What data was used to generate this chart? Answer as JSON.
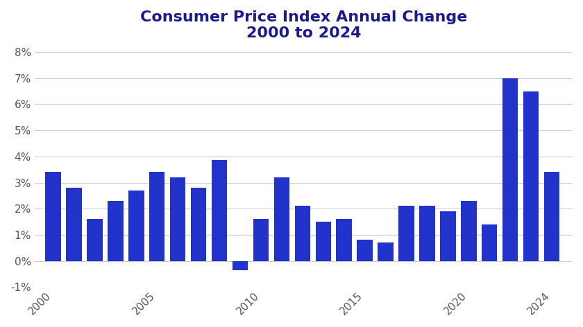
{
  "title_line1": "Consumer Price Index Annual Change",
  "title_line2": "2000 to 2024",
  "years": [
    2000,
    2001,
    2002,
    2003,
    2004,
    2005,
    2006,
    2007,
    2008,
    2009,
    2010,
    2011,
    2012,
    2013,
    2014,
    2015,
    2016,
    2017,
    2018,
    2019,
    2020,
    2021,
    2022,
    2023,
    2024
  ],
  "values": [
    3.4,
    2.8,
    1.6,
    2.3,
    2.7,
    3.4,
    3.2,
    2.8,
    3.85,
    -0.36,
    1.6,
    3.2,
    2.1,
    1.5,
    1.6,
    0.8,
    0.7,
    2.1,
    2.1,
    1.9,
    2.3,
    1.4,
    7.0,
    6.5,
    3.4
  ],
  "bar_color": "#2233cc",
  "bg_color": "#ffffff",
  "grid_color": "#cccccc",
  "title_color": "#1a1a8c",
  "axis_label_color": "#555555",
  "ylim": [
    -1.0,
    8.0
  ],
  "yticks": [
    -1,
    0,
    1,
    2,
    3,
    4,
    5,
    6,
    7,
    8
  ],
  "xticks": [
    2000,
    2005,
    2010,
    2015,
    2020,
    2024
  ],
  "title_fontsize": 16,
  "tick_fontsize": 11,
  "bar_width": 0.75
}
